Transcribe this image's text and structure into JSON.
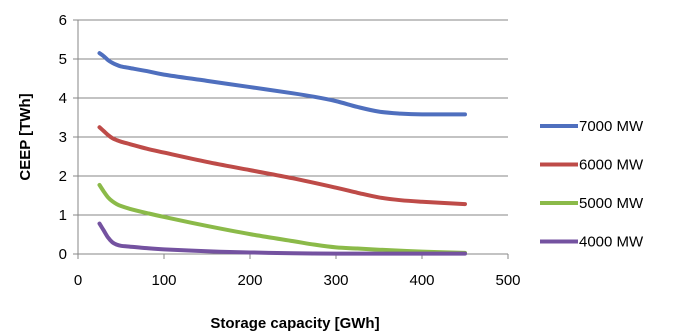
{
  "chart_data": {
    "type": "line",
    "xlabel": "Storage capacity [GWh]",
    "ylabel": "CEEP [TWh]",
    "xlim": [
      0,
      500
    ],
    "ylim": [
      0,
      6
    ],
    "x_ticks": [
      "0",
      "100",
      "200",
      "300",
      "400",
      "500"
    ],
    "y_ticks": [
      "0",
      "1",
      "2",
      "3",
      "4",
      "5",
      "6"
    ],
    "grid": "horizontal",
    "legend_position": "right",
    "series": [
      {
        "name": "7000 MW",
        "color": "#4f6fbe",
        "x": [
          25,
          30,
          35,
          40,
          45,
          50,
          60,
          80,
          100,
          150,
          200,
          250,
          275,
          300,
          325,
          350,
          375,
          400,
          450
        ],
        "y": [
          5.15,
          5.07,
          4.97,
          4.9,
          4.85,
          4.81,
          4.77,
          4.69,
          4.6,
          4.44,
          4.28,
          4.12,
          4.03,
          3.92,
          3.77,
          3.65,
          3.6,
          3.58,
          3.58
        ]
      },
      {
        "name": "6000 MW",
        "color": "#be4b48",
        "x": [
          25,
          30,
          35,
          40,
          45,
          50,
          60,
          80,
          100,
          150,
          200,
          250,
          300,
          325,
          350,
          375,
          400,
          450
        ],
        "y": [
          3.25,
          3.15,
          3.05,
          2.97,
          2.92,
          2.88,
          2.82,
          2.7,
          2.6,
          2.36,
          2.15,
          1.94,
          1.7,
          1.57,
          1.45,
          1.38,
          1.34,
          1.28
        ]
      },
      {
        "name": "5000 MW",
        "color": "#8bba49",
        "x": [
          25,
          30,
          35,
          40,
          45,
          50,
          60,
          80,
          100,
          150,
          200,
          250,
          275,
          300,
          325,
          350,
          400,
          450
        ],
        "y": [
          1.77,
          1.6,
          1.45,
          1.35,
          1.28,
          1.23,
          1.16,
          1.05,
          0.95,
          0.72,
          0.51,
          0.33,
          0.24,
          0.17,
          0.14,
          0.11,
          0.06,
          0.03
        ]
      },
      {
        "name": "4000 MW",
        "color": "#7452a0",
        "x": [
          25,
          30,
          35,
          40,
          45,
          50,
          60,
          80,
          100,
          150,
          200,
          250,
          300,
          350,
          400,
          450
        ],
        "y": [
          0.78,
          0.6,
          0.42,
          0.3,
          0.24,
          0.21,
          0.19,
          0.15,
          0.12,
          0.07,
          0.04,
          0.02,
          0.01,
          0.01,
          0.01,
          0.01
        ]
      }
    ]
  }
}
